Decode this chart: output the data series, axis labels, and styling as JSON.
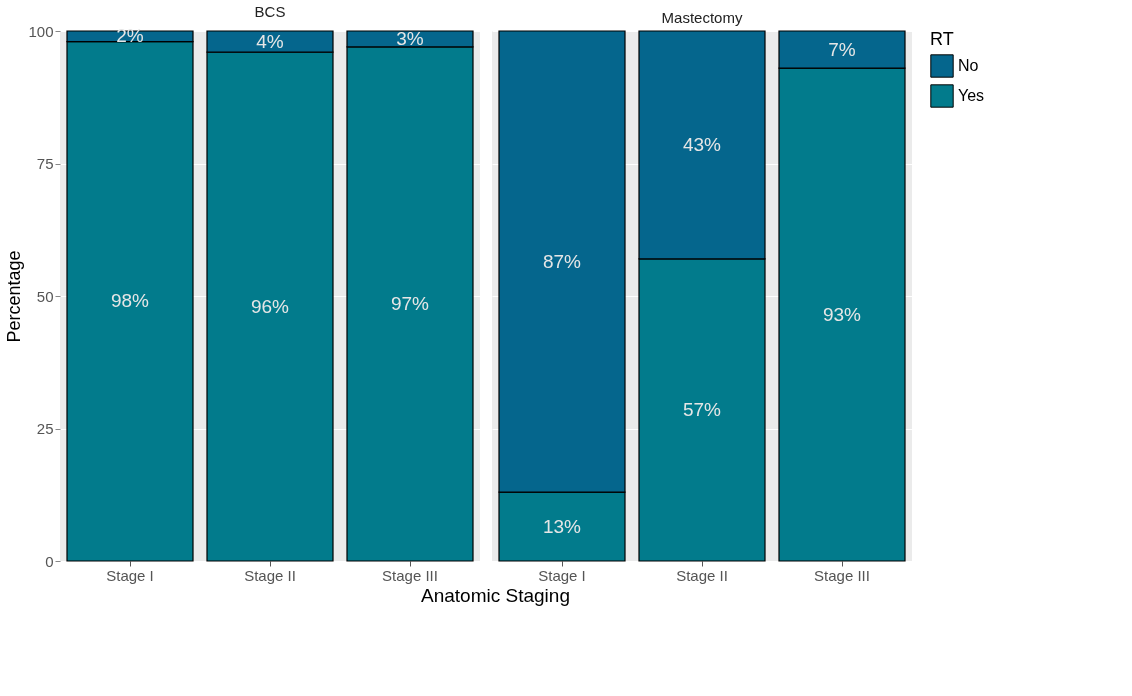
{
  "chart_data": [
    {
      "type": "bar",
      "title": "BCS",
      "ylabel": "Percentage",
      "xlabel": "Anatomic Staging",
      "categories": [
        "Stage I",
        "Stage II",
        "Stage III"
      ],
      "stacked": true,
      "ylim": [
        0,
        100
      ],
      "yticks": [
        0,
        25,
        50,
        75,
        100
      ],
      "grid": true,
      "series": [
        {
          "color": "#027b8c",
          "values": [
            98,
            96,
            97
          ],
          "value_labels": [
            "98%",
            "96%",
            "97%"
          ]
        },
        {
          "color": "#05668d",
          "values": [
            2,
            4,
            3
          ],
          "value_labels": [
            "2%",
            "4%",
            "3%"
          ]
        }
      ]
    },
    {
      "type": "bar",
      "title": "Mastectomy",
      "legend_title": "RT",
      "legend": "right",
      "tick_labels": "x",
      "categories": [
        "Stage I",
        "Stage II",
        "Stage III"
      ],
      "stacked": true,
      "ylim": [
        0,
        100
      ],
      "yticks": [
        0,
        25,
        50,
        75,
        100
      ],
      "grid": true,
      "series": [
        {
          "name": "Yes",
          "color": "#027b8c",
          "values": [
            13,
            57,
            93
          ],
          "value_labels": [
            "13%",
            "57%",
            "93%"
          ]
        },
        {
          "name": "No",
          "color": "#05668d",
          "values": [
            87,
            43,
            7
          ],
          "value_labels": [
            "87%",
            "43%",
            "7%"
          ]
        }
      ]
    }
  ]
}
